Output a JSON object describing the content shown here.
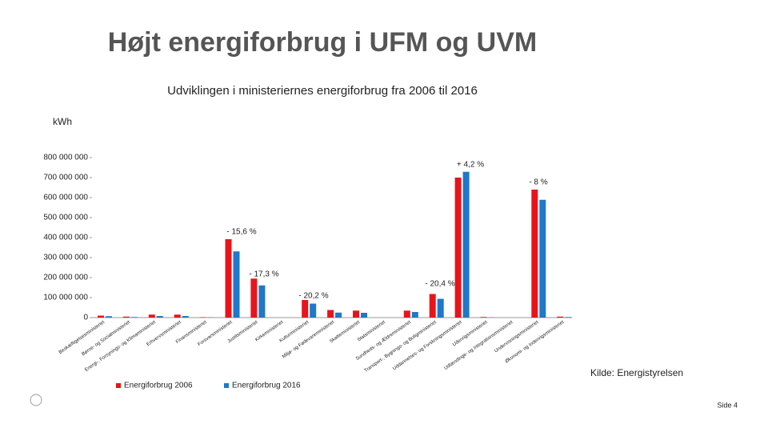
{
  "title": "Højt energiforbrug i UFM og UVM",
  "source": "Kilde: Energistyrelsen",
  "page_number": "Side 4",
  "chart_data": {
    "type": "bar",
    "subtitle": "Udviklingen i ministeriernes energiforbrug fra 2006 til 2016",
    "y_axis_title": "kWh",
    "categories": [
      "Beskæftigelsesministeriet",
      "Børne- og Socialministeriet",
      "Energi-, Forsynings- og Klimaministeriet",
      "Erhvervsministeriet",
      "Finansministeriet",
      "Forsvarsministeriet",
      "Justitsministeriet",
      "Kirkeministeriet",
      "Kulturministeriet",
      "Miljø- og Fødevareministeriet",
      "Skatteministeriet",
      "Statsministeriet",
      "Sundheds- og Ældreministeriet",
      "Transport-, Bygnings- og Boligministeriet",
      "Uddannelses- og Forskningsministeriet",
      "Udenrigsministeriet",
      "Udlændinge- og Integrationsministeriet",
      "Undervisningsministeriet",
      "Økonomi- og Indenrigsministeriet"
    ],
    "series": [
      {
        "name": "Energiforbrug 2006",
        "color": "#e8141b",
        "values": [
          10000000,
          5000000,
          15000000,
          15000000,
          2000000,
          392000000,
          195000000,
          0,
          88000000,
          38000000,
          35000000,
          0,
          35000000,
          118000000,
          700000000,
          3000000,
          0,
          640000000,
          5000000
        ]
      },
      {
        "name": "Energiforbrug 2016",
        "color": "#1f78c8",
        "values": [
          7000000,
          3000000,
          8000000,
          8000000,
          1000000,
          331000000,
          161000000,
          0,
          70000000,
          25000000,
          24000000,
          0,
          28000000,
          94000000,
          729000000,
          1000000,
          0,
          589000000,
          3000000
        ]
      }
    ],
    "annotations": [
      "+ 4,2 %",
      "- 8 %",
      "- 15,6 %",
      "- 17,3 %",
      "- 20,2 %",
      "- 20,4 %"
    ],
    "ylim": [
      0,
      800000000
    ],
    "yticks": [
      {
        "value": 0,
        "label": "0"
      },
      {
        "value": 100000000,
        "label": "100 000 000"
      },
      {
        "value": 200000000,
        "label": "200 000 000"
      },
      {
        "value": 300000000,
        "label": "300 000 000"
      },
      {
        "value": 400000000,
        "label": "400 000 000"
      },
      {
        "value": 500000000,
        "label": "500 000 000"
      },
      {
        "value": 600000000,
        "label": "600 000 000"
      },
      {
        "value": 700000000,
        "label": "700 000 000"
      },
      {
        "value": 800000000,
        "label": "800 000 000"
      }
    ],
    "grid": false
  }
}
